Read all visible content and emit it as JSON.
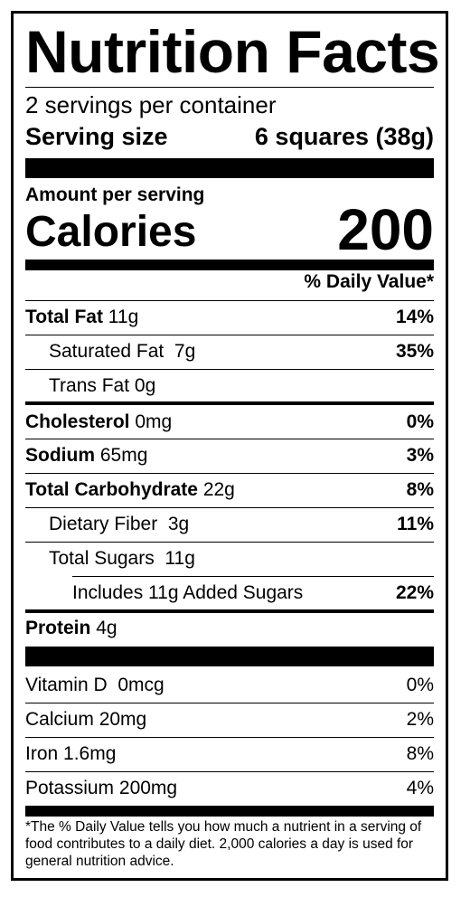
{
  "title": "Nutrition Facts",
  "servings_per_container": "2 servings per container",
  "serving_size": {
    "label": "Serving size",
    "value": "6 squares (38g)"
  },
  "amount_per_serving": "Amount per serving",
  "calories": {
    "label": "Calories",
    "value": "200"
  },
  "daily_value_header": "% Daily Value*",
  "nutrients": {
    "total_fat": {
      "name": "Total Fat",
      "amount": "11g",
      "dv": "14%"
    },
    "saturated_fat": {
      "name": "Saturated Fat",
      "amount": "7g",
      "dv": "35%"
    },
    "trans_fat": {
      "name": "Trans Fat",
      "amount": "0g"
    },
    "cholesterol": {
      "name": "Cholesterol",
      "amount": "0mg",
      "dv": "0%"
    },
    "sodium": {
      "name": "Sodium",
      "amount": "65mg",
      "dv": "3%"
    },
    "total_carbohydrate": {
      "name": "Total Carbohydrate",
      "amount": "22g",
      "dv": "8%"
    },
    "dietary_fiber": {
      "name": "Dietary Fiber",
      "amount": "3g",
      "dv": "11%"
    },
    "total_sugars": {
      "name": "Total Sugars",
      "amount": "11g"
    },
    "added_sugars": {
      "text": "Includes 11g Added Sugars",
      "dv": "22%"
    },
    "protein": {
      "name": "Protein",
      "amount": "4g"
    }
  },
  "vitamins": {
    "vitamin_d": {
      "name": "Vitamin D",
      "amount": "0mcg",
      "dv": "0%"
    },
    "calcium": {
      "name": "Calcium",
      "amount": "20mg",
      "dv": "2%"
    },
    "iron": {
      "name": "Iron",
      "amount": "1.6mg",
      "dv": "8%"
    },
    "potassium": {
      "name": "Potassium",
      "amount": "200mg",
      "dv": "4%"
    }
  },
  "footnote": "*The % Daily Value tells you how much a nutrient in a serving of food contributes to a daily diet. 2,000 calories a day is used for general nutrition advice."
}
